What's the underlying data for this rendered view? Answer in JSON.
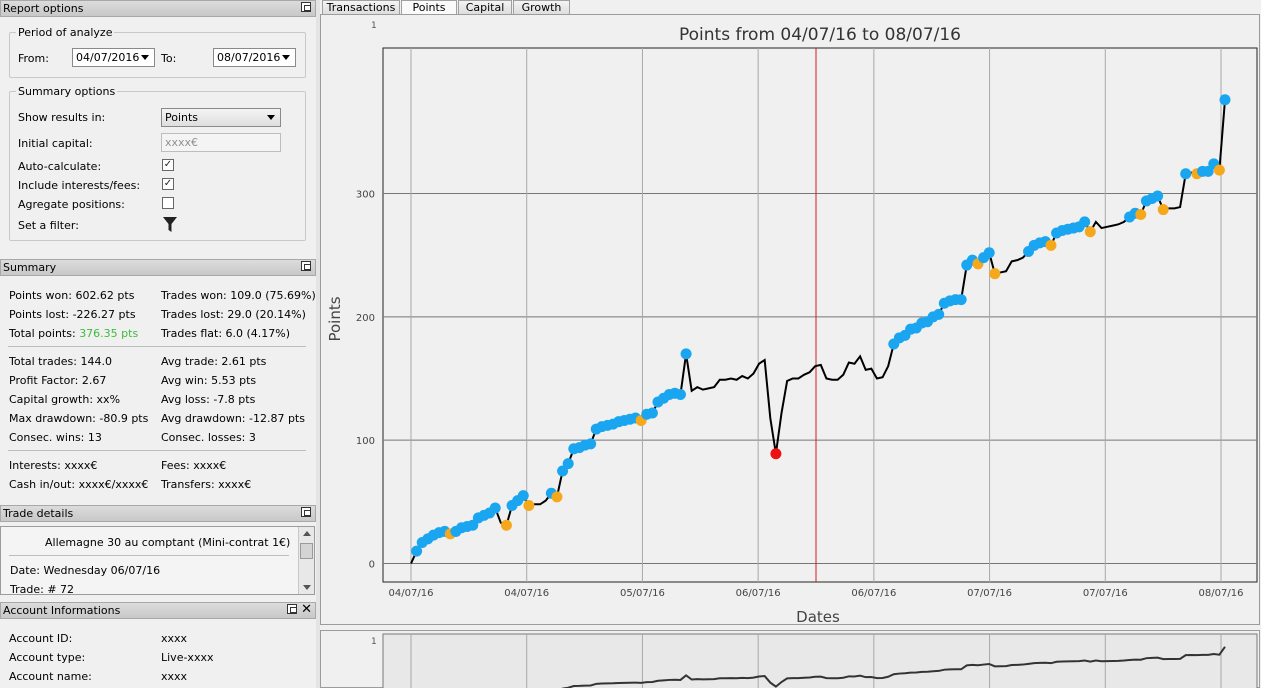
{
  "report_options": {
    "title": "Report options",
    "period_title": "Period of analyze",
    "from_label": "From:",
    "from_value": "04/07/2016",
    "to_label": "To:",
    "to_value": "08/07/2016",
    "summary_title": "Summary options",
    "show_results_label": "Show results in:",
    "show_results_value": "Points",
    "initial_capital_label": "Initial capital:",
    "initial_capital_placeholder": "xxxx€",
    "auto_calc_label": "Auto-calculate:",
    "auto_calc_checked": true,
    "include_fees_label": "Include interests/fees:",
    "include_fees_checked": true,
    "aggregate_label": "Agregate positions:",
    "aggregate_checked": false,
    "filter_label": "Set a filter:"
  },
  "summary": {
    "title": "Summary",
    "points_won": "Points won: 602.62 pts",
    "points_lost": "Points lost: -226.27 pts",
    "total_points_label": "Total points: ",
    "total_points_value": "376.35 pts",
    "trades_won": "Trades won: 109.0 (75.69%)",
    "trades_lost": "Trades lost: 29.0 (20.14%)",
    "trades_flat": "Trades flat: 6.0 (4.17%)",
    "total_trades": "Total trades: 144.0",
    "profit_factor": "Profit Factor: 2.67",
    "capital_growth": "Capital growth: xx%",
    "max_drawdown": "Max drawdown: -80.9 pts",
    "consec_wins": "Consec. wins: 13",
    "avg_trade": "Avg trade: 2.61 pts",
    "avg_win": "Avg win: 5.53 pts",
    "avg_loss": "Avg loss: -7.8 pts",
    "avg_drawdown": "Avg drawdown: -12.87 pts",
    "consec_losses": "Consec. losses: 3",
    "interests": "Interests: xxxx€",
    "cash_inout": "Cash in/out: xxxx€/xxxx€",
    "fees": "Fees: xxxx€",
    "transfers": "Transfers: xxxx€"
  },
  "trade_details": {
    "title": "Trade details",
    "instrument": "Allemagne 30 au comptant (Mini-contrat 1€)",
    "date": "Date: Wednesday 06/07/16",
    "trade": "Trade: # 72"
  },
  "account": {
    "title": "Account Informations",
    "id_label": "Account ID:",
    "id_value": "xxxx",
    "type_label": "Account type:",
    "type_value": "Live-xxxx",
    "name_label": "Account name:",
    "name_value": "xxxx"
  },
  "tabs": [
    {
      "label": "Transactions"
    },
    {
      "label": "Points"
    },
    {
      "label": "Capital"
    },
    {
      "label": "Growth"
    }
  ],
  "colors": {
    "win": "#1aa5f0",
    "flat": "#f5a81c",
    "loss": "#ee1111",
    "line": "#000000",
    "marker": "#d02020"
  },
  "chart_data": {
    "type": "line",
    "title": "Points from 04/07/16 to 08/07/16",
    "xlabel": "Dates",
    "ylabel": "Points",
    "ylim": [
      -15,
      418
    ],
    "corner_label": "1",
    "yticks": [
      0,
      100,
      200,
      300
    ],
    "xtick_labels": [
      "04/07/16",
      "04/07/16",
      "05/07/16",
      "06/07/16",
      "06/07/16",
      "07/07/16",
      "07/07/16",
      "08/07/16"
    ],
    "grid": true,
    "points": [
      [
        0,
        0,
        "n"
      ],
      [
        1,
        10,
        "w"
      ],
      [
        2,
        17,
        "w"
      ],
      [
        3,
        20,
        "w"
      ],
      [
        4,
        23,
        "w"
      ],
      [
        5,
        25,
        "w"
      ],
      [
        6,
        26,
        "w"
      ],
      [
        7,
        24,
        "f"
      ],
      [
        8,
        26,
        "w"
      ],
      [
        9,
        29,
        "w"
      ],
      [
        10,
        30,
        "w"
      ],
      [
        11,
        31,
        "w"
      ],
      [
        12,
        37,
        "w"
      ],
      [
        13,
        39,
        "w"
      ],
      [
        14,
        41,
        "w"
      ],
      [
        15,
        45,
        "w"
      ],
      [
        16,
        33,
        "n"
      ],
      [
        17,
        31,
        "f"
      ],
      [
        18,
        47,
        "w"
      ],
      [
        19,
        51,
        "w"
      ],
      [
        20,
        55,
        "w"
      ],
      [
        21,
        47,
        "f"
      ],
      [
        22,
        48,
        "n"
      ],
      [
        23,
        48,
        "n"
      ],
      [
        24,
        51,
        "n"
      ],
      [
        25,
        57,
        "w"
      ],
      [
        26,
        54,
        "f"
      ],
      [
        27,
        75,
        "w"
      ],
      [
        28,
        81,
        "w"
      ],
      [
        29,
        93,
        "w"
      ],
      [
        30,
        94,
        "w"
      ],
      [
        31,
        96,
        "w"
      ],
      [
        32,
        97,
        "w"
      ],
      [
        33,
        109,
        "w"
      ],
      [
        34,
        111,
        "w"
      ],
      [
        35,
        112,
        "w"
      ],
      [
        36,
        113,
        "w"
      ],
      [
        37,
        115,
        "w"
      ],
      [
        38,
        116,
        "w"
      ],
      [
        39,
        117,
        "w"
      ],
      [
        40,
        118,
        "w"
      ],
      [
        41,
        116,
        "f"
      ],
      [
        42,
        121,
        "w"
      ],
      [
        43,
        122,
        "w"
      ],
      [
        44,
        131,
        "w"
      ],
      [
        45,
        134,
        "w"
      ],
      [
        46,
        137,
        "w"
      ],
      [
        47,
        138,
        "w"
      ],
      [
        48,
        137,
        "w"
      ],
      [
        49,
        170,
        "w"
      ],
      [
        50,
        140,
        "n"
      ],
      [
        51,
        143,
        "n"
      ],
      [
        52,
        141,
        "n"
      ],
      [
        53,
        142,
        "n"
      ],
      [
        54,
        143,
        "n"
      ],
      [
        55,
        149,
        "n"
      ],
      [
        56,
        149,
        "n"
      ],
      [
        57,
        150,
        "n"
      ],
      [
        58,
        149,
        "n"
      ],
      [
        59,
        152,
        "n"
      ],
      [
        60,
        150,
        "n"
      ],
      [
        61,
        154,
        "n"
      ],
      [
        62,
        162,
        "n"
      ],
      [
        63,
        165,
        "n"
      ],
      [
        64,
        118,
        "n"
      ],
      [
        65,
        89,
        "l"
      ],
      [
        66,
        122,
        "n"
      ],
      [
        67,
        148,
        "n"
      ],
      [
        68,
        150,
        "n"
      ],
      [
        69,
        150,
        "n"
      ],
      [
        70,
        153,
        "n"
      ],
      [
        71,
        155,
        "n"
      ],
      [
        72,
        160,
        "n"
      ],
      [
        73,
        161,
        "n"
      ],
      [
        74,
        150,
        "n"
      ],
      [
        75,
        149,
        "n"
      ],
      [
        76,
        149,
        "n"
      ],
      [
        77,
        153,
        "n"
      ],
      [
        78,
        163,
        "n"
      ],
      [
        79,
        162,
        "n"
      ],
      [
        80,
        168,
        "n"
      ],
      [
        81,
        157,
        "n"
      ],
      [
        82,
        158,
        "n"
      ],
      [
        83,
        150,
        "n"
      ],
      [
        84,
        151,
        "n"
      ],
      [
        85,
        160,
        "n"
      ],
      [
        86,
        178,
        "w"
      ],
      [
        87,
        183,
        "w"
      ],
      [
        88,
        185,
        "w"
      ],
      [
        89,
        190,
        "w"
      ],
      [
        90,
        191,
        "w"
      ],
      [
        91,
        195,
        "w"
      ],
      [
        92,
        196,
        "w"
      ],
      [
        93,
        200,
        "w"
      ],
      [
        94,
        202,
        "w"
      ],
      [
        95,
        211,
        "w"
      ],
      [
        96,
        213,
        "w"
      ],
      [
        97,
        214,
        "w"
      ],
      [
        98,
        214,
        "w"
      ],
      [
        99,
        242,
        "w"
      ],
      [
        100,
        246,
        "w"
      ],
      [
        101,
        243,
        "f"
      ],
      [
        102,
        248,
        "w"
      ],
      [
        103,
        252,
        "w"
      ],
      [
        104,
        235,
        "f"
      ],
      [
        105,
        236,
        "n"
      ],
      [
        106,
        237,
        "n"
      ],
      [
        107,
        245,
        "n"
      ],
      [
        108,
        246,
        "n"
      ],
      [
        109,
        248,
        "n"
      ],
      [
        110,
        253,
        "w"
      ],
      [
        111,
        258,
        "w"
      ],
      [
        112,
        260,
        "w"
      ],
      [
        113,
        261,
        "w"
      ],
      [
        114,
        258,
        "f"
      ],
      [
        115,
        268,
        "w"
      ],
      [
        116,
        270,
        "w"
      ],
      [
        117,
        271,
        "w"
      ],
      [
        118,
        272,
        "w"
      ],
      [
        119,
        273,
        "w"
      ],
      [
        120,
        277,
        "w"
      ],
      [
        121,
        269,
        "f"
      ],
      [
        122,
        277,
        "n"
      ],
      [
        123,
        272,
        "n"
      ],
      [
        124,
        273,
        "n"
      ],
      [
        125,
        274,
        "n"
      ],
      [
        126,
        275,
        "n"
      ],
      [
        127,
        277,
        "n"
      ],
      [
        128,
        281,
        "w"
      ],
      [
        129,
        284,
        "w"
      ],
      [
        130,
        283,
        "f"
      ],
      [
        131,
        294,
        "w"
      ],
      [
        132,
        296,
        "w"
      ],
      [
        133,
        298,
        "w"
      ],
      [
        134,
        287,
        "f"
      ],
      [
        135,
        288,
        "n"
      ],
      [
        136,
        288,
        "n"
      ],
      [
        137,
        289,
        "n"
      ],
      [
        138,
        316,
        "w"
      ],
      [
        139,
        317,
        "n"
      ],
      [
        140,
        316,
        "f"
      ],
      [
        141,
        318,
        "w"
      ],
      [
        142,
        318,
        "w"
      ],
      [
        143,
        324,
        "w"
      ],
      [
        144,
        319,
        "f"
      ],
      [
        145,
        376,
        "w"
      ]
    ]
  }
}
